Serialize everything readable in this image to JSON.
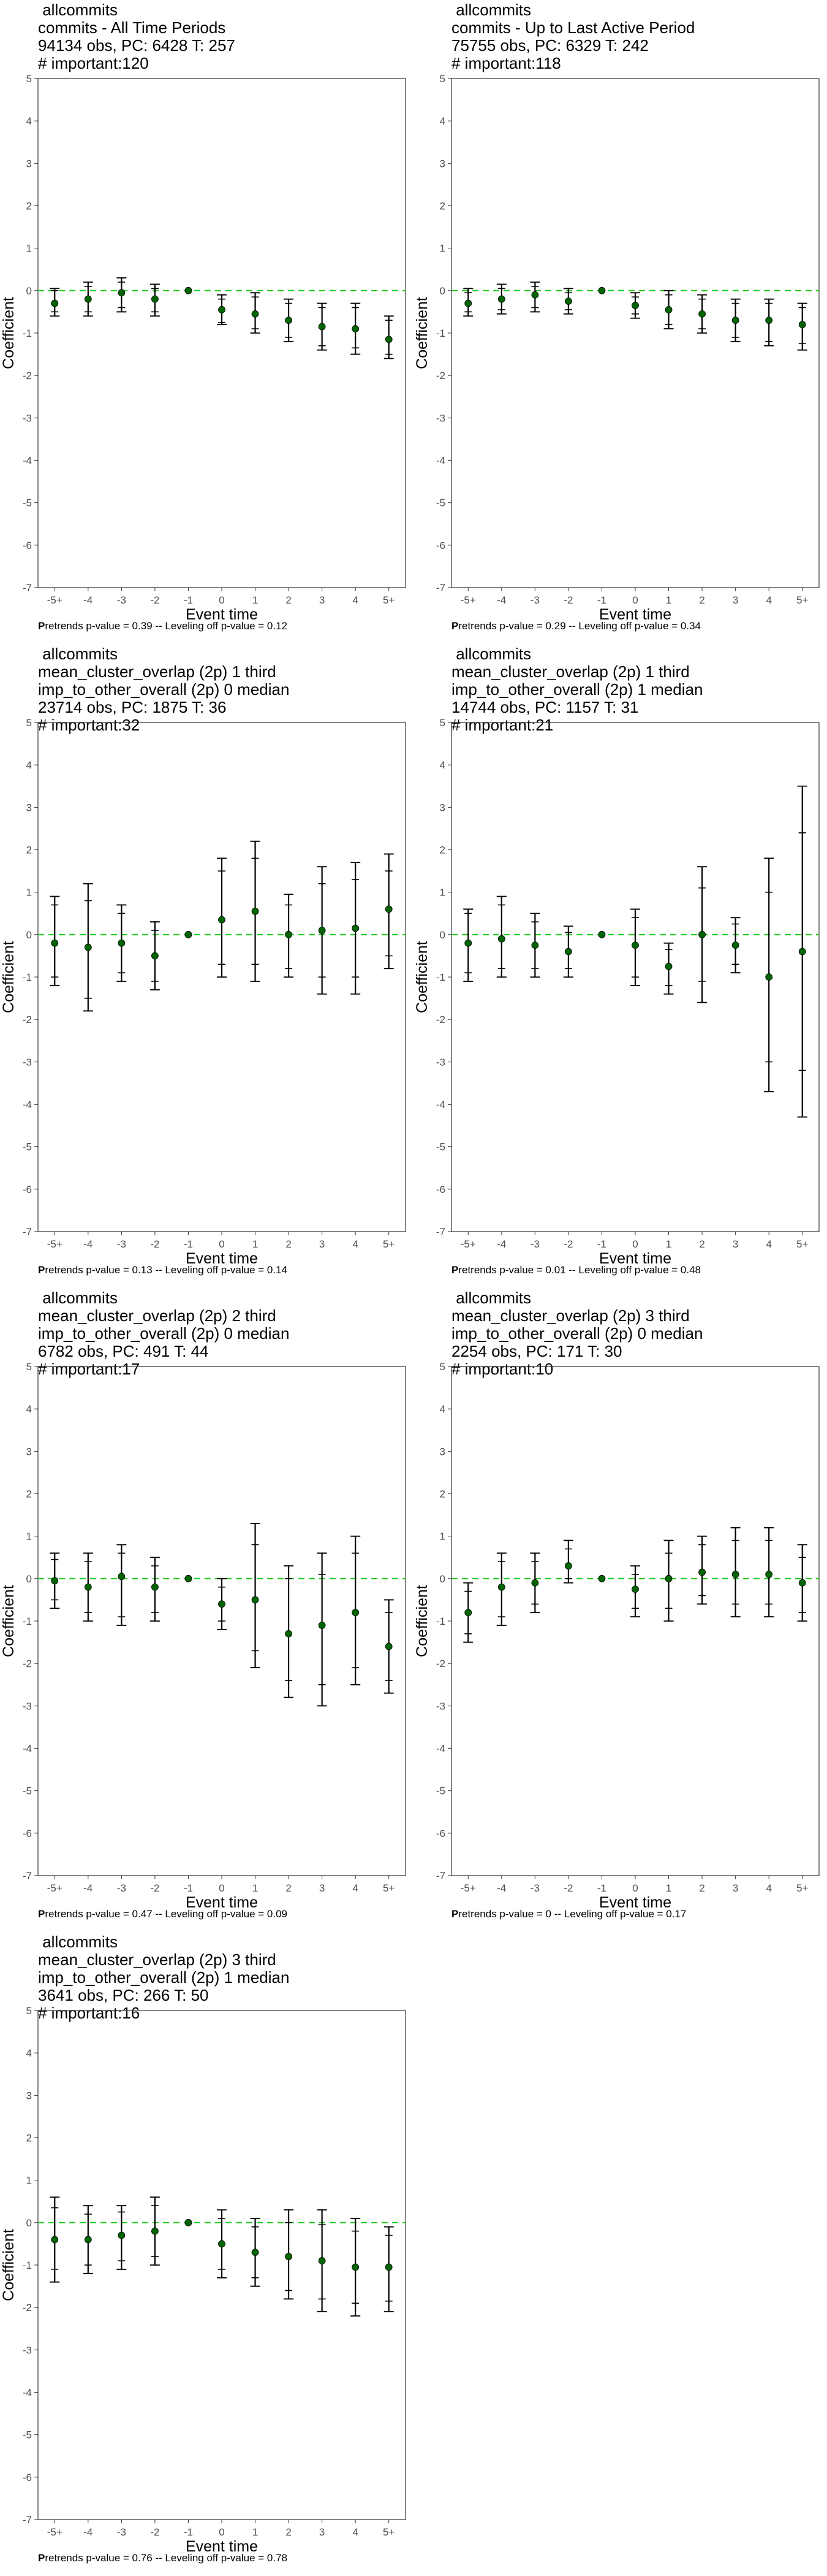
{
  "chart_data": [
    {
      "type": "scatter",
      "title": [
        "allcommits",
        "commits - All Time Periods",
        "94134 obs, PC: 6428 T: 257",
        "# important:120"
      ],
      "xlabel": "Event time",
      "ylabel": "Coefficient",
      "categories": [
        "-5+",
        "-4",
        "-3",
        "-2",
        "-1",
        "0",
        "1",
        "2",
        "3",
        "4",
        "5+"
      ],
      "ylim": [
        -7,
        5
      ],
      "yticks": [
        5,
        4,
        3,
        2,
        1,
        0,
        -1,
        -2,
        -3,
        -4,
        -5,
        -6,
        -7
      ],
      "reference_line": 0,
      "values": [
        -0.3,
        -0.2,
        -0.05,
        -0.2,
        0,
        -0.45,
        -0.55,
        -0.7,
        -0.85,
        -0.9,
        -1.15
      ],
      "ci95": [
        [
          -0.6,
          0.05
        ],
        [
          -0.6,
          0.2
        ],
        [
          -0.5,
          0.3
        ],
        [
          -0.6,
          0.15
        ],
        [
          0,
          0
        ],
        [
          -0.8,
          -0.1
        ],
        [
          -1.0,
          -0.05
        ],
        [
          -1.2,
          -0.2
        ],
        [
          -1.4,
          -0.3
        ],
        [
          -1.5,
          -0.3
        ],
        [
          -1.6,
          -0.6
        ]
      ],
      "ci90": [
        [
          -0.5,
          0.0
        ],
        [
          -0.5,
          0.1
        ],
        [
          -0.4,
          0.2
        ],
        [
          -0.5,
          0.05
        ],
        [
          0,
          0
        ],
        [
          -0.75,
          -0.2
        ],
        [
          -0.9,
          -0.15
        ],
        [
          -1.1,
          -0.3
        ],
        [
          -1.3,
          -0.4
        ],
        [
          -1.35,
          -0.4
        ],
        [
          -1.5,
          -0.7
        ]
      ],
      "note_bold": "P",
      "note": "retrends p-value = 0.39 -- Leveling off p-value = 0.12",
      "colors": {
        "point": "#006400",
        "reference": "#22cc22",
        "bar": "#000000"
      }
    },
    {
      "type": "scatter",
      "title": [
        "allcommits",
        "commits - Up to Last Active Period",
        "75755 obs, PC: 6329 T: 242",
        "# important:118"
      ],
      "xlabel": "Event time",
      "ylabel": "Coefficient",
      "categories": [
        "-5+",
        "-4",
        "-3",
        "-2",
        "-1",
        "0",
        "1",
        "2",
        "3",
        "4",
        "5+"
      ],
      "ylim": [
        -7,
        5
      ],
      "yticks": [
        5,
        4,
        3,
        2,
        1,
        0,
        -1,
        -2,
        -3,
        -4,
        -5,
        -6,
        -7
      ],
      "reference_line": 0,
      "values": [
        -0.3,
        -0.2,
        -0.1,
        -0.25,
        0,
        -0.35,
        -0.45,
        -0.55,
        -0.7,
        -0.7,
        -0.8
      ],
      "ci95": [
        [
          -0.6,
          0.05
        ],
        [
          -0.55,
          0.15
        ],
        [
          -0.5,
          0.2
        ],
        [
          -0.55,
          0.05
        ],
        [
          0,
          0
        ],
        [
          -0.65,
          -0.05
        ],
        [
          -0.9,
          0.0
        ],
        [
          -1.0,
          -0.1
        ],
        [
          -1.2,
          -0.2
        ],
        [
          -1.3,
          -0.2
        ],
        [
          -1.4,
          -0.3
        ]
      ],
      "ci90": [
        [
          -0.5,
          -0.05
        ],
        [
          -0.45,
          0.05
        ],
        [
          -0.4,
          0.1
        ],
        [
          -0.45,
          -0.05
        ],
        [
          0,
          0
        ],
        [
          -0.55,
          -0.15
        ],
        [
          -0.8,
          -0.1
        ],
        [
          -0.9,
          -0.2
        ],
        [
          -1.1,
          -0.3
        ],
        [
          -1.2,
          -0.3
        ],
        [
          -1.25,
          -0.4
        ]
      ],
      "note_bold": "P",
      "note": "retrends p-value = 0.29 -- Leveling off p-value = 0.34",
      "colors": {
        "point": "#006400",
        "reference": "#22cc22",
        "bar": "#000000"
      }
    },
    {
      "type": "scatter",
      "title": [
        "allcommits",
        "mean_cluster_overlap (2p) 1 third",
        "imp_to_other_overall (2p) 0 median",
        "23714 obs, PC: 1875 T: 36",
        "# important:32"
      ],
      "xlabel": "Event time",
      "ylabel": "Coefficient",
      "categories": [
        "-5+",
        "-4",
        "-3",
        "-2",
        "-1",
        "0",
        "1",
        "2",
        "3",
        "4",
        "5+"
      ],
      "ylim": [
        -7,
        5
      ],
      "yticks": [
        5,
        4,
        3,
        2,
        1,
        0,
        -1,
        -2,
        -3,
        -4,
        -5,
        -6,
        -7
      ],
      "reference_line": 0,
      "values": [
        -0.2,
        -0.3,
        -0.2,
        -0.5,
        0,
        0.35,
        0.55,
        0.0,
        0.1,
        0.15,
        0.6
      ],
      "ci95": [
        [
          -1.2,
          0.9
        ],
        [
          -1.8,
          1.2
        ],
        [
          -1.1,
          0.7
        ],
        [
          -1.3,
          0.3
        ],
        [
          0,
          0
        ],
        [
          -1.0,
          1.8
        ],
        [
          -1.1,
          2.2
        ],
        [
          -1.0,
          0.95
        ],
        [
          -1.4,
          1.6
        ],
        [
          -1.4,
          1.7
        ],
        [
          -0.8,
          1.9
        ]
      ],
      "ci90": [
        [
          -1.0,
          0.7
        ],
        [
          -1.5,
          0.8
        ],
        [
          -0.9,
          0.5
        ],
        [
          -1.1,
          0.1
        ],
        [
          0,
          0
        ],
        [
          -0.7,
          1.5
        ],
        [
          -0.7,
          1.8
        ],
        [
          -0.8,
          0.7
        ],
        [
          -1.0,
          1.2
        ],
        [
          -1.0,
          1.3
        ],
        [
          -0.5,
          1.5
        ]
      ],
      "note_bold": "P",
      "note": "retrends p-value = 0.13 -- Leveling off p-value = 0.14",
      "colors": {
        "point": "#006400",
        "reference": "#22cc22",
        "bar": "#000000"
      }
    },
    {
      "type": "scatter",
      "title": [
        "allcommits",
        "mean_cluster_overlap (2p) 1 third",
        "imp_to_other_overall (2p) 1 median",
        "14744 obs, PC: 1157 T: 31",
        "# important:21"
      ],
      "xlabel": "Event time",
      "ylabel": "Coefficient",
      "categories": [
        "-5+",
        "-4",
        "-3",
        "-2",
        "-1",
        "0",
        "1",
        "2",
        "3",
        "4",
        "5+"
      ],
      "ylim": [
        -7,
        5
      ],
      "yticks": [
        5,
        4,
        3,
        2,
        1,
        0,
        -1,
        -2,
        -3,
        -4,
        -5,
        -6,
        -7
      ],
      "reference_line": 0,
      "values": [
        -0.2,
        -0.1,
        -0.25,
        -0.4,
        0,
        -0.25,
        -0.75,
        0.0,
        -0.25,
        -1.0,
        -0.4
      ],
      "ci95": [
        [
          -1.1,
          0.6
        ],
        [
          -1.0,
          0.9
        ],
        [
          -1.0,
          0.5
        ],
        [
          -1.0,
          0.2
        ],
        [
          0,
          0
        ],
        [
          -1.2,
          0.6
        ],
        [
          -1.4,
          -0.2
        ],
        [
          -1.6,
          1.6
        ],
        [
          -0.9,
          0.4
        ],
        [
          -3.7,
          1.8
        ],
        [
          -4.3,
          3.5
        ]
      ],
      "ci90": [
        [
          -0.9,
          0.5
        ],
        [
          -0.8,
          0.7
        ],
        [
          -0.8,
          0.3
        ],
        [
          -0.8,
          0.05
        ],
        [
          0,
          0
        ],
        [
          -1.0,
          0.4
        ],
        [
          -1.2,
          -0.35
        ],
        [
          -1.1,
          1.1
        ],
        [
          -0.7,
          0.25
        ],
        [
          -3.0,
          1.0
        ],
        [
          -3.2,
          2.4
        ]
      ],
      "note_bold": "P",
      "note": "retrends p-value = 0.01 -- Leveling off p-value = 0.48",
      "colors": {
        "point": "#006400",
        "reference": "#22cc22",
        "bar": "#000000"
      }
    },
    {
      "type": "scatter",
      "title": [
        "allcommits",
        "mean_cluster_overlap (2p) 2 third",
        "imp_to_other_overall (2p) 0 median",
        "6782 obs, PC: 491 T: 44",
        "# important:17"
      ],
      "xlabel": "Event time",
      "ylabel": "Coefficient",
      "categories": [
        "-5+",
        "-4",
        "-3",
        "-2",
        "-1",
        "0",
        "1",
        "2",
        "3",
        "4",
        "5+"
      ],
      "ylim": [
        -7,
        5
      ],
      "yticks": [
        5,
        4,
        3,
        2,
        1,
        0,
        -1,
        -2,
        -3,
        -4,
        -5,
        -6,
        -7
      ],
      "reference_line": 0,
      "values": [
        -0.05,
        -0.2,
        0.05,
        -0.2,
        0,
        -0.6,
        -0.5,
        -1.3,
        -1.1,
        -0.8,
        -1.6
      ],
      "ci95": [
        [
          -0.7,
          0.6
        ],
        [
          -1.0,
          0.6
        ],
        [
          -1.1,
          0.8
        ],
        [
          -1.0,
          0.5
        ],
        [
          0,
          0
        ],
        [
          -1.2,
          0.0
        ],
        [
          -2.1,
          1.3
        ],
        [
          -2.8,
          0.3
        ],
        [
          -3.0,
          0.6
        ],
        [
          -2.5,
          1.0
        ],
        [
          -2.7,
          -0.5
        ]
      ],
      "ci90": [
        [
          -0.5,
          0.45
        ],
        [
          -0.8,
          0.4
        ],
        [
          -0.9,
          0.6
        ],
        [
          -0.8,
          0.3
        ],
        [
          0,
          0
        ],
        [
          -1.0,
          -0.2
        ],
        [
          -1.7,
          0.8
        ],
        [
          -2.4,
          0.0
        ],
        [
          -2.5,
          0.1
        ],
        [
          -2.1,
          0.6
        ],
        [
          -2.4,
          -0.8
        ]
      ],
      "note_bold": "P",
      "note": "retrends p-value = 0.47 -- Leveling off p-value = 0.09",
      "colors": {
        "point": "#006400",
        "reference": "#22cc22",
        "bar": "#000000"
      }
    },
    {
      "type": "scatter",
      "title": [
        "allcommits",
        "mean_cluster_overlap (2p) 3 third",
        "imp_to_other_overall (2p) 0 median",
        "2254 obs, PC: 171 T: 30",
        "# important:10"
      ],
      "xlabel": "Event time",
      "ylabel": "Coefficient",
      "categories": [
        "-5+",
        "-4",
        "-3",
        "-2",
        "-1",
        "0",
        "1",
        "2",
        "3",
        "4",
        "5+"
      ],
      "ylim": [
        -7,
        5
      ],
      "yticks": [
        5,
        4,
        3,
        2,
        1,
        0,
        -1,
        -2,
        -3,
        -4,
        -5,
        -6,
        -7
      ],
      "reference_line": 0,
      "values": [
        -0.8,
        -0.2,
        -0.1,
        0.3,
        0,
        -0.25,
        0.0,
        0.15,
        0.1,
        0.1,
        -0.1
      ],
      "ci95": [
        [
          -1.5,
          -0.1
        ],
        [
          -1.1,
          0.6
        ],
        [
          -0.8,
          0.6
        ],
        [
          -0.1,
          0.9
        ],
        [
          0,
          0
        ],
        [
          -0.9,
          0.3
        ],
        [
          -1.0,
          0.9
        ],
        [
          -0.6,
          1.0
        ],
        [
          -0.9,
          1.2
        ],
        [
          -0.9,
          1.2
        ],
        [
          -1.0,
          0.8
        ]
      ],
      "ci90": [
        [
          -1.3,
          -0.3
        ],
        [
          -0.9,
          0.4
        ],
        [
          -0.6,
          0.4
        ],
        [
          0.0,
          0.7
        ],
        [
          0,
          0
        ],
        [
          -0.7,
          0.1
        ],
        [
          -0.7,
          0.6
        ],
        [
          -0.4,
          0.8
        ],
        [
          -0.6,
          0.9
        ],
        [
          -0.6,
          0.9
        ],
        [
          -0.8,
          0.5
        ]
      ],
      "note_bold": "P",
      "note": "retrends p-value = 0 -- Leveling off p-value = 0.17",
      "colors": {
        "point": "#006400",
        "reference": "#22cc22",
        "bar": "#000000"
      }
    },
    {
      "type": "scatter",
      "title": [
        "allcommits",
        "mean_cluster_overlap (2p) 3 third",
        "imp_to_other_overall (2p) 1 median",
        "3641 obs, PC: 266 T: 50",
        "# important:16"
      ],
      "xlabel": "Event time",
      "ylabel": "Coefficient",
      "categories": [
        "-5+",
        "-4",
        "-3",
        "-2",
        "-1",
        "0",
        "1",
        "2",
        "3",
        "4",
        "5+"
      ],
      "ylim": [
        -7,
        5
      ],
      "yticks": [
        5,
        4,
        3,
        2,
        1,
        0,
        -1,
        -2,
        -3,
        -4,
        -5,
        -6,
        -7
      ],
      "reference_line": 0,
      "values": [
        -0.4,
        -0.4,
        -0.3,
        -0.2,
        0,
        -0.5,
        -0.7,
        -0.8,
        -0.9,
        -1.05,
        -1.05
      ],
      "ci95": [
        [
          -1.4,
          0.6
        ],
        [
          -1.2,
          0.4
        ],
        [
          -1.1,
          0.4
        ],
        [
          -1.0,
          0.6
        ],
        [
          0,
          0
        ],
        [
          -1.3,
          0.3
        ],
        [
          -1.5,
          0.1
        ],
        [
          -1.8,
          0.3
        ],
        [
          -2.1,
          0.3
        ],
        [
          -2.2,
          0.1
        ],
        [
          -2.1,
          -0.1
        ]
      ],
      "ci90": [
        [
          -1.1,
          0.35
        ],
        [
          -1.0,
          0.2
        ],
        [
          -0.9,
          0.25
        ],
        [
          -0.8,
          0.4
        ],
        [
          0,
          0
        ],
        [
          -1.1,
          0.1
        ],
        [
          -1.3,
          -0.1
        ],
        [
          -1.6,
          0.0
        ],
        [
          -1.8,
          -0.05
        ],
        [
          -1.9,
          -0.2
        ],
        [
          -1.85,
          -0.3
        ]
      ],
      "note_bold": "P",
      "note": "retrends p-value = 0.76 -- Leveling off p-value = 0.78",
      "colors": {
        "point": "#006400",
        "reference": "#22cc22",
        "bar": "#000000"
      }
    }
  ]
}
